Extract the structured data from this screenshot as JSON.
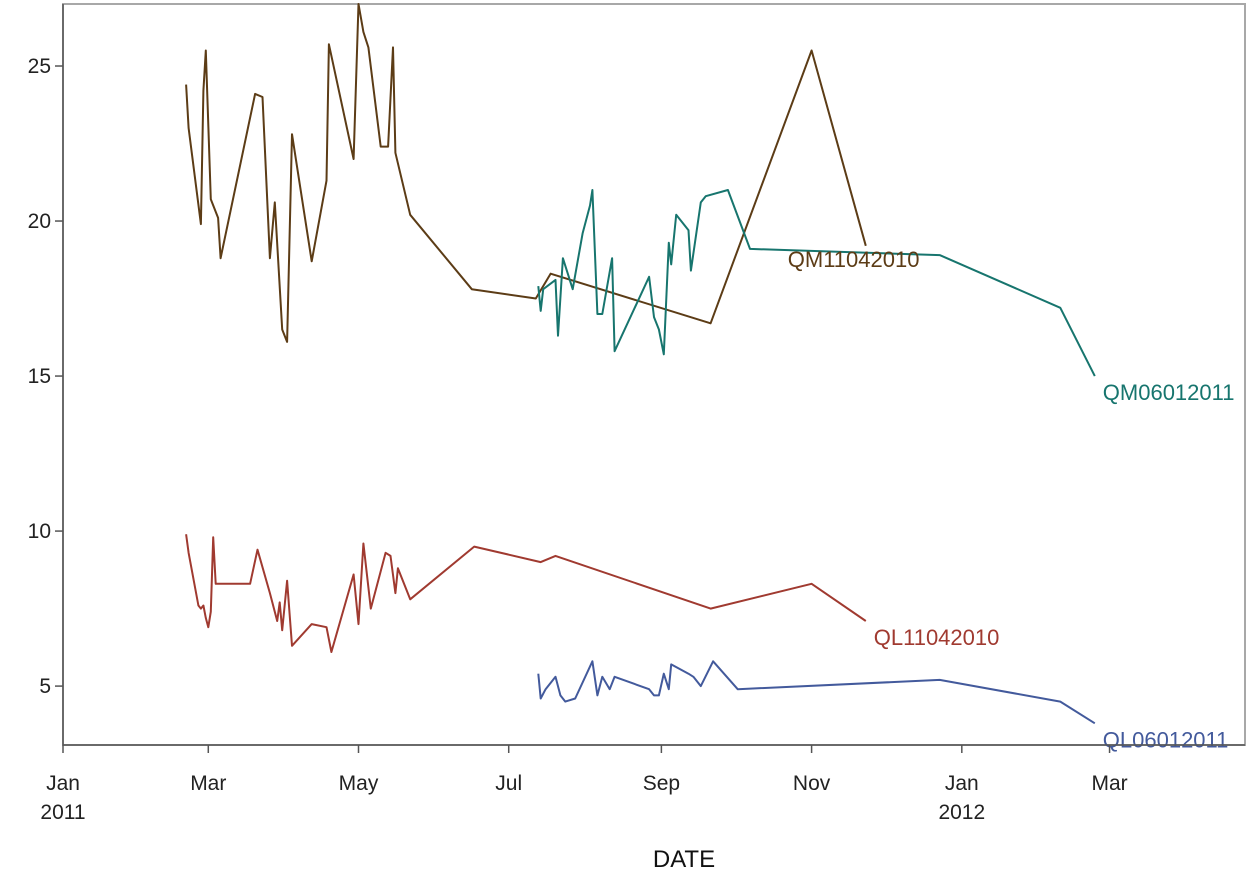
{
  "chart_data": {
    "type": "line",
    "title": "",
    "xlabel": "DATE",
    "ylabel": "",
    "x_axis_type": "date",
    "xlim": [
      "2011-01-01",
      "2012-04-25"
    ],
    "ylim": [
      3.1,
      27
    ],
    "grid": false,
    "legend": "none (series labelled at line ends)",
    "x_ticks": [
      {
        "date": "2011-01-01",
        "label": "Jan",
        "sublabel": "2011"
      },
      {
        "date": "2011-03-01",
        "label": "Mar",
        "sublabel": ""
      },
      {
        "date": "2011-05-01",
        "label": "May",
        "sublabel": ""
      },
      {
        "date": "2011-07-01",
        "label": "Jul",
        "sublabel": ""
      },
      {
        "date": "2011-09-01",
        "label": "Sep",
        "sublabel": ""
      },
      {
        "date": "2011-11-01",
        "label": "Nov",
        "sublabel": ""
      },
      {
        "date": "2012-01-01",
        "label": "Jan",
        "sublabel": "2012"
      },
      {
        "date": "2012-03-01",
        "label": "Mar",
        "sublabel": ""
      }
    ],
    "y_ticks": [
      5,
      10,
      15,
      20,
      25
    ],
    "series": [
      {
        "name": "QM11042010",
        "color": "#5c3c16",
        "label_color": "#5c3c16",
        "points": [
          [
            "2011-02-20",
            24.4
          ],
          [
            "2011-02-21",
            23.0
          ],
          [
            "2011-02-26",
            19.9
          ],
          [
            "2011-02-27",
            24.2
          ],
          [
            "2011-02-28",
            25.5
          ],
          [
            "2011-03-02",
            20.7
          ],
          [
            "2011-03-05",
            20.1
          ],
          [
            "2011-03-06",
            18.8
          ],
          [
            "2011-03-20",
            24.1
          ],
          [
            "2011-03-23",
            24.0
          ],
          [
            "2011-03-26",
            18.8
          ],
          [
            "2011-03-28",
            20.6
          ],
          [
            "2011-03-31",
            16.5
          ],
          [
            "2011-04-02",
            16.1
          ],
          [
            "2011-04-04",
            22.8
          ],
          [
            "2011-04-12",
            18.7
          ],
          [
            "2011-04-18",
            21.3
          ],
          [
            "2011-04-19",
            25.7
          ],
          [
            "2011-04-29",
            22.0
          ],
          [
            "2011-05-01",
            27.0
          ],
          [
            "2011-05-03",
            26.1
          ],
          [
            "2011-05-05",
            25.6
          ],
          [
            "2011-05-10",
            22.4
          ],
          [
            "2011-05-13",
            22.4
          ],
          [
            "2011-05-15",
            25.6
          ],
          [
            "2011-05-16",
            22.2
          ],
          [
            "2011-05-22",
            20.2
          ],
          [
            "2011-06-16",
            17.8
          ],
          [
            "2011-07-12",
            17.5
          ],
          [
            "2011-07-18",
            18.3
          ],
          [
            "2011-09-21",
            16.7
          ],
          [
            "2011-11-01",
            25.5
          ],
          [
            "2011-11-23",
            19.2
          ]
        ]
      },
      {
        "name": "QM06012011",
        "color": "#17756e",
        "label_color": "#17756e",
        "points": [
          [
            "2011-07-13",
            17.9
          ],
          [
            "2011-07-14",
            17.1
          ],
          [
            "2011-07-15",
            17.8
          ],
          [
            "2011-07-20",
            18.1
          ],
          [
            "2011-07-21",
            16.3
          ],
          [
            "2011-07-23",
            18.8
          ],
          [
            "2011-07-27",
            17.8
          ],
          [
            "2011-07-31",
            19.6
          ],
          [
            "2011-08-03",
            20.5
          ],
          [
            "2011-08-04",
            21.0
          ],
          [
            "2011-08-06",
            17.0
          ],
          [
            "2011-08-08",
            17.0
          ],
          [
            "2011-08-12",
            18.8
          ],
          [
            "2011-08-13",
            15.8
          ],
          [
            "2011-08-27",
            18.2
          ],
          [
            "2011-08-29",
            16.9
          ],
          [
            "2011-08-31",
            16.5
          ],
          [
            "2011-09-02",
            15.7
          ],
          [
            "2011-09-04",
            19.3
          ],
          [
            "2011-09-05",
            18.6
          ],
          [
            "2011-09-07",
            20.2
          ],
          [
            "2011-09-12",
            19.7
          ],
          [
            "2011-09-13",
            18.4
          ],
          [
            "2011-09-17",
            20.6
          ],
          [
            "2011-09-19",
            20.8
          ],
          [
            "2011-09-28",
            21.0
          ],
          [
            "2011-10-07",
            19.1
          ],
          [
            "2011-12-23",
            18.9
          ],
          [
            "2012-02-10",
            17.2
          ],
          [
            "2012-02-24",
            15.0
          ]
        ]
      },
      {
        "name": "QL11042010",
        "color": "#a03a30",
        "label_color": "#a03a30",
        "points": [
          [
            "2011-02-20",
            9.9
          ],
          [
            "2011-02-21",
            9.3
          ],
          [
            "2011-02-25",
            7.6
          ],
          [
            "2011-02-26",
            7.5
          ],
          [
            "2011-02-27",
            7.6
          ],
          [
            "2011-02-28",
            7.2
          ],
          [
            "2011-03-01",
            6.9
          ],
          [
            "2011-03-02",
            7.4
          ],
          [
            "2011-03-03",
            9.8
          ],
          [
            "2011-03-04",
            8.3
          ],
          [
            "2011-03-18",
            8.3
          ],
          [
            "2011-03-21",
            9.4
          ],
          [
            "2011-03-26",
            8.0
          ],
          [
            "2011-03-29",
            7.1
          ],
          [
            "2011-03-30",
            7.7
          ],
          [
            "2011-03-31",
            6.8
          ],
          [
            "2011-04-02",
            8.4
          ],
          [
            "2011-04-04",
            6.3
          ],
          [
            "2011-04-12",
            7.0
          ],
          [
            "2011-04-18",
            6.9
          ],
          [
            "2011-04-20",
            6.1
          ],
          [
            "2011-04-29",
            8.6
          ],
          [
            "2011-05-01",
            7.0
          ],
          [
            "2011-05-03",
            9.6
          ],
          [
            "2011-05-06",
            7.5
          ],
          [
            "2011-05-12",
            9.3
          ],
          [
            "2011-05-14",
            9.2
          ],
          [
            "2011-05-16",
            8.0
          ],
          [
            "2011-05-17",
            8.8
          ],
          [
            "2011-05-22",
            7.8
          ],
          [
            "2011-06-17",
            9.5
          ],
          [
            "2011-07-14",
            9.0
          ],
          [
            "2011-07-20",
            9.2
          ],
          [
            "2011-09-21",
            7.5
          ],
          [
            "2011-11-01",
            8.3
          ],
          [
            "2011-11-23",
            7.1
          ]
        ]
      },
      {
        "name": "QL06012011",
        "color": "#435a9c",
        "label_color": "#435a9c",
        "points": [
          [
            "2011-07-13",
            5.4
          ],
          [
            "2011-07-14",
            4.6
          ],
          [
            "2011-07-16",
            4.9
          ],
          [
            "2011-07-20",
            5.3
          ],
          [
            "2011-07-22",
            4.7
          ],
          [
            "2011-07-24",
            4.5
          ],
          [
            "2011-07-28",
            4.6
          ],
          [
            "2011-08-04",
            5.8
          ],
          [
            "2011-08-06",
            4.7
          ],
          [
            "2011-08-08",
            5.3
          ],
          [
            "2011-08-11",
            4.9
          ],
          [
            "2011-08-13",
            5.3
          ],
          [
            "2011-08-27",
            4.9
          ],
          [
            "2011-08-29",
            4.7
          ],
          [
            "2011-08-31",
            4.7
          ],
          [
            "2011-09-02",
            5.4
          ],
          [
            "2011-09-04",
            4.9
          ],
          [
            "2011-09-05",
            5.7
          ],
          [
            "2011-09-12",
            5.4
          ],
          [
            "2011-09-14",
            5.3
          ],
          [
            "2011-09-17",
            5.0
          ],
          [
            "2011-09-22",
            5.8
          ],
          [
            "2011-10-02",
            4.9
          ],
          [
            "2011-12-23",
            5.2
          ],
          [
            "2012-02-10",
            4.5
          ],
          [
            "2012-02-24",
            3.8
          ]
        ]
      }
    ]
  }
}
